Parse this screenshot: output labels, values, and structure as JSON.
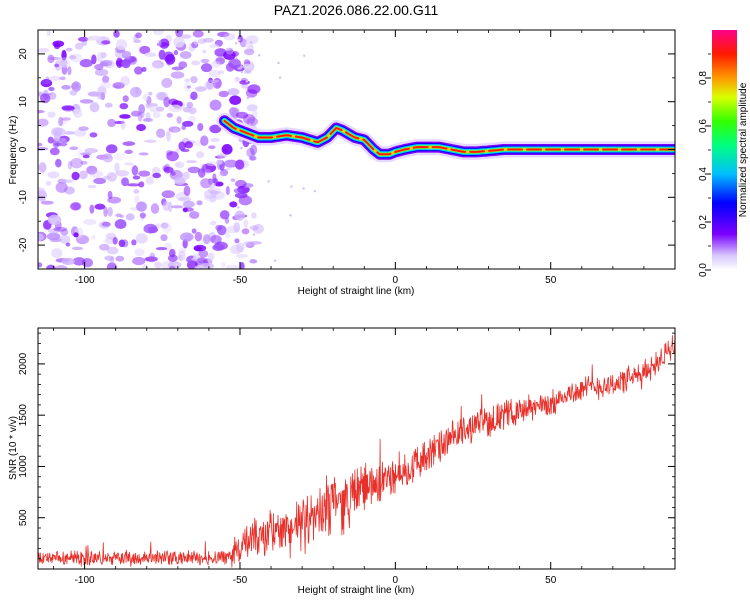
{
  "title": "PAZ1.2026.086.22.00.G11",
  "chart_data": [
    {
      "type": "heatmap",
      "xlabel": "Height of straight line (km)",
      "ylabel": "Frequency (Hz)",
      "xlim": [
        -115,
        90
      ],
      "ylim": [
        -25,
        25
      ],
      "xticks": [
        -100,
        -50,
        0,
        50
      ],
      "yticks": [
        20,
        10,
        0,
        -10,
        -20
      ],
      "noise_region_x": [
        -115,
        -50
      ],
      "signal_track": {
        "x": [
          -55,
          -52,
          -48,
          -44,
          -40,
          -35,
          -30,
          -25,
          -22,
          -19,
          -17,
          -13,
          -10,
          -7,
          -5,
          -2,
          0,
          3,
          7,
          10,
          14,
          18,
          22,
          26,
          30,
          35,
          45,
          60,
          75,
          90
        ],
        "freq": [
          6,
          4.5,
          3.5,
          2.5,
          2.5,
          3,
          2.5,
          1.5,
          2.5,
          4.5,
          4,
          2.5,
          2,
          0,
          -1,
          -1,
          -0.5,
          0,
          0.5,
          0.5,
          0.5,
          0,
          -0.5,
          -0.5,
          -0.3,
          0,
          0,
          0,
          0,
          0
        ]
      },
      "colorbar": {
        "label": "Normalized spectral amplitude",
        "ticks": [
          "0.0",
          "0.2",
          "0.4",
          "0.6",
          "0.8"
        ],
        "range": [
          0,
          1
        ]
      }
    },
    {
      "type": "line",
      "xlabel": "Height of straight line (km)",
      "ylabel": "SNR (10 * v/v)",
      "xlim": [
        -115,
        90
      ],
      "ylim": [
        0,
        2350
      ],
      "xticks": [
        -100,
        -50,
        0,
        50
      ],
      "yticks": [
        500,
        1000,
        1500,
        2000
      ],
      "color": "#e8302a",
      "trend": {
        "x": [
          -115,
          -100,
          -80,
          -60,
          -55,
          -50,
          -45,
          -40,
          -35,
          -30,
          -25,
          -22,
          -19,
          -17,
          -15,
          -10,
          -5,
          0,
          5,
          10,
          15,
          20,
          25,
          30,
          35,
          40,
          45,
          50,
          55,
          60,
          65,
          70,
          75,
          80,
          85,
          90
        ],
        "y": [
          100,
          100,
          110,
          110,
          120,
          200,
          300,
          350,
          380,
          420,
          500,
          600,
          750,
          600,
          700,
          800,
          850,
          900,
          1000,
          1100,
          1200,
          1300,
          1400,
          1450,
          1500,
          1550,
          1580,
          1600,
          1700,
          1750,
          1780,
          1800,
          1850,
          1900,
          2050,
          2150
        ]
      },
      "noise": {
        "x": [
          -115,
          -60,
          -55,
          -50,
          -30,
          -20,
          0,
          50,
          90
        ],
        "amp": [
          60,
          60,
          80,
          150,
          220,
          250,
          160,
          100,
          110
        ]
      }
    }
  ]
}
